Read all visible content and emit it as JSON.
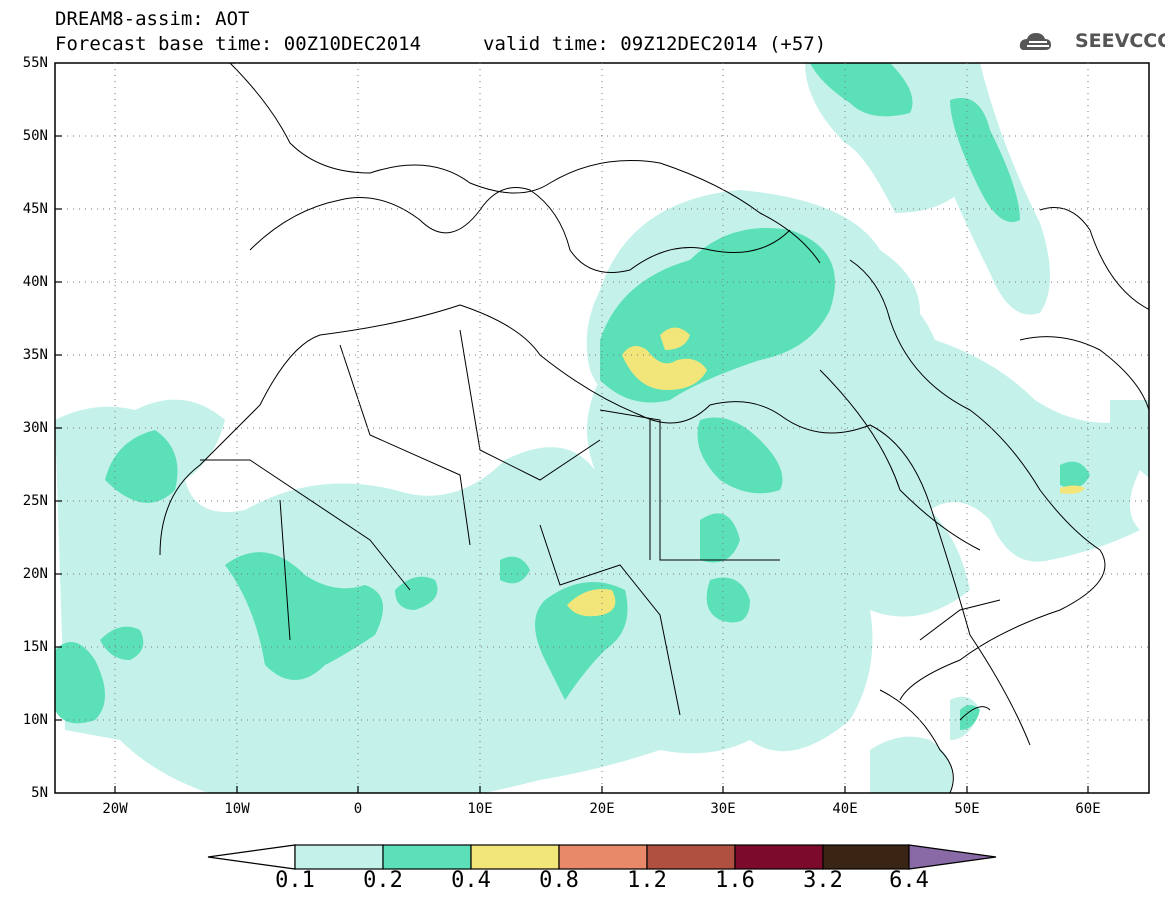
{
  "header": {
    "line1": "DREAM8-assim: AOT",
    "line2": "Forecast base time: 00Z10DEC2014",
    "valid": "valid time: 09Z12DEC2014 (+57)",
    "logo_text": "SEEVCCC",
    "logo_icon": "cloud-icon"
  },
  "map": {
    "lat_labels": [
      "55N",
      "50N",
      "45N",
      "40N",
      "35N",
      "30N",
      "25N",
      "20N",
      "15N",
      "10N",
      "5N"
    ],
    "lon_labels": [
      "20W",
      "10W",
      "0",
      "10E",
      "20E",
      "30E",
      "40E",
      "50E",
      "60E"
    ],
    "colors": {
      "c1": "#c4f2ea",
      "c2": "#5be0b8",
      "c3": "#f2e67a"
    }
  },
  "colorbar": {
    "labels": [
      "0.1",
      "0.2",
      "0.4",
      "0.8",
      "1.2",
      "1.6",
      "3.2",
      "6.4"
    ],
    "colors": [
      "#ffffff",
      "#c4f2ea",
      "#5be0b8",
      "#f2e67a",
      "#e8896a",
      "#b05040",
      "#7c0a2a",
      "#3a2414",
      "#8a6aa6"
    ]
  }
}
